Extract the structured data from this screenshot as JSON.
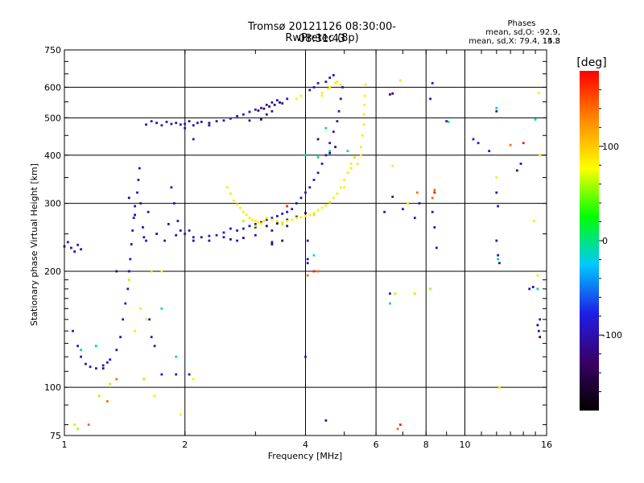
{
  "chart_data": {
    "type": "scatter",
    "title": "Tromsø 20121126 08:30:00-08:31:43",
    "subtitle": "RwPretec (8p)",
    "xlabel": "Frequency [MHz]",
    "ylabel": "Stationary phase Virtual Height [km]",
    "x_scale": "log",
    "y_scale": "log",
    "xlim": [
      1,
      16
    ],
    "ylim": [
      75,
      750
    ],
    "x_ticks": [
      1,
      2,
      4,
      6,
      8,
      10,
      16
    ],
    "y_ticks": [
      75,
      100,
      200,
      300,
      400,
      500,
      600,
      750
    ],
    "x_gridlines": [
      2,
      4,
      6,
      8,
      10
    ],
    "y_gridlines": [
      100,
      200,
      300,
      400,
      500,
      600
    ],
    "grid": true,
    "phase_stats": {
      "heading": "Phases",
      "line_O": "mean, sd,O: -92.9, 14.8",
      "line_X": "mean, sd,X:  79.4, 15.3"
    },
    "colorbar": {
      "label": "[deg]",
      "range": [
        -180,
        180
      ],
      "ticks": [
        100,
        0,
        -100
      ],
      "colors": [
        "#000000",
        "#3a0066",
        "#1e1ee6",
        "#00c8ff",
        "#00ff00",
        "#ffff00",
        "#ff8800",
        "#ff0000"
      ]
    },
    "series": [
      {
        "phase": -95,
        "points": [
          [
            1.0,
            232
          ],
          [
            1.02,
            238
          ],
          [
            1.04,
            230
          ],
          [
            1.06,
            225
          ],
          [
            1.08,
            234
          ],
          [
            1.1,
            228
          ],
          [
            1.05,
            140
          ],
          [
            1.08,
            128
          ],
          [
            1.1,
            120
          ],
          [
            1.13,
            115
          ],
          [
            1.16,
            113
          ],
          [
            1.2,
            112
          ],
          [
            1.25,
            114
          ],
          [
            1.28,
            116
          ],
          [
            1.3,
            118
          ],
          [
            1.35,
            125
          ],
          [
            1.38,
            135
          ],
          [
            1.4,
            150
          ],
          [
            1.42,
            165
          ],
          [
            1.44,
            180
          ],
          [
            1.45,
            200
          ],
          [
            1.46,
            215
          ],
          [
            1.47,
            235
          ],
          [
            1.48,
            255
          ],
          [
            1.49,
            275
          ],
          [
            1.5,
            295
          ],
          [
            1.52,
            320
          ],
          [
            1.53,
            345
          ],
          [
            1.54,
            370
          ],
          [
            1.55,
            300
          ],
          [
            1.57,
            260
          ],
          [
            1.58,
            245
          ],
          [
            1.6,
            240
          ],
          [
            1.62,
            285
          ],
          [
            1.63,
            150
          ],
          [
            1.65,
            135
          ],
          [
            1.68,
            128
          ],
          [
            1.58,
            105
          ],
          [
            1.78,
            240
          ],
          [
            1.82,
            265
          ],
          [
            1.85,
            330
          ],
          [
            1.88,
            300
          ],
          [
            1.92,
            270
          ],
          [
            1.95,
            255
          ],
          [
            2.0,
            250
          ],
          [
            2.05,
            255
          ],
          [
            2.1,
            245
          ],
          [
            2.2,
            245
          ],
          [
            2.3,
            247
          ],
          [
            2.4,
            248
          ],
          [
            2.5,
            252
          ],
          [
            2.6,
            258
          ],
          [
            2.7,
            255
          ],
          [
            2.8,
            258
          ],
          [
            2.9,
            262
          ],
          [
            3.0,
            265
          ],
          [
            3.1,
            268
          ],
          [
            3.2,
            272
          ],
          [
            3.3,
            275
          ],
          [
            3.4,
            278
          ],
          [
            3.5,
            282
          ],
          [
            3.6,
            285
          ],
          [
            3.7,
            290
          ],
          [
            3.8,
            300
          ],
          [
            3.9,
            310
          ],
          [
            4.0,
            320
          ],
          [
            4.1,
            330
          ],
          [
            4.2,
            345
          ],
          [
            4.3,
            360
          ],
          [
            4.4,
            380
          ],
          [
            4.5,
            400
          ],
          [
            4.6,
            430
          ],
          [
            4.7,
            460
          ],
          [
            4.8,
            490
          ],
          [
            4.85,
            520
          ],
          [
            4.9,
            560
          ],
          [
            4.95,
            600
          ],
          [
            4.5,
            620
          ],
          [
            4.6,
            635
          ],
          [
            4.7,
            645
          ],
          [
            4.1,
            590
          ],
          [
            4.2,
            600
          ],
          [
            4.3,
            615
          ],
          [
            1.6,
            480
          ],
          [
            1.65,
            490
          ],
          [
            1.7,
            485
          ],
          [
            1.75,
            478
          ],
          [
            1.8,
            488
          ],
          [
            1.85,
            482
          ],
          [
            1.9,
            485
          ],
          [
            1.95,
            480
          ],
          [
            2.0,
            482
          ],
          [
            2.05,
            490
          ],
          [
            2.1,
            478
          ],
          [
            2.15,
            485
          ],
          [
            2.2,
            488
          ],
          [
            2.3,
            485
          ],
          [
            2.4,
            490
          ],
          [
            2.5,
            492
          ],
          [
            2.6,
            498
          ],
          [
            2.7,
            505
          ],
          [
            2.8,
            510
          ],
          [
            2.9,
            518
          ],
          [
            3.0,
            525
          ],
          [
            3.1,
            530
          ],
          [
            3.2,
            540
          ],
          [
            3.3,
            548
          ],
          [
            3.4,
            555
          ],
          [
            3.5,
            545
          ],
          [
            3.6,
            560
          ],
          [
            2.1,
            440
          ],
          [
            2.0,
            470
          ],
          [
            4.0,
            120
          ],
          [
            1.75,
            108
          ],
          [
            1.9,
            108
          ],
          [
            2.05,
            108
          ],
          [
            2.5,
            245
          ],
          [
            2.7,
            240
          ],
          [
            3.3,
            238
          ],
          [
            4.05,
            240
          ],
          [
            4.05,
            215
          ],
          [
            4.05,
            210
          ],
          [
            4.5,
            82
          ],
          [
            6.5,
            175
          ],
          [
            6.6,
            312
          ],
          [
            7.0,
            290
          ],
          [
            7.5,
            275
          ],
          [
            7.7,
            300
          ],
          [
            8.3,
            285
          ],
          [
            8.4,
            260
          ],
          [
            8.5,
            230
          ],
          [
            8.2,
            560
          ],
          [
            8.3,
            615
          ],
          [
            9.0,
            490
          ],
          [
            10.5,
            440
          ],
          [
            10.8,
            430
          ],
          [
            11.5,
            410
          ],
          [
            12.0,
            320
          ],
          [
            12.1,
            295
          ],
          [
            12.0,
            240
          ],
          [
            12.1,
            220
          ],
          [
            12.2,
            210
          ],
          [
            13.8,
            380
          ],
          [
            14.5,
            180
          ],
          [
            15.3,
            140
          ],
          [
            15.4,
            150
          ],
          [
            12.0,
            520
          ],
          [
            6.3,
            285
          ],
          [
            5.3,
            395
          ]
        ]
      },
      {
        "phase": -115,
        "points": [
          [
            1.25,
            112
          ],
          [
            1.35,
            200
          ],
          [
            1.45,
            310
          ],
          [
            1.5,
            280
          ],
          [
            1.7,
            250
          ],
          [
            1.9,
            248
          ],
          [
            2.1,
            240
          ],
          [
            2.3,
            240
          ],
          [
            2.6,
            242
          ],
          [
            2.8,
            244
          ],
          [
            3.0,
            248
          ],
          [
            3.3,
            255
          ],
          [
            3.6,
            262
          ],
          [
            2.9,
            492
          ],
          [
            3.1,
            495
          ],
          [
            3.2,
            510
          ],
          [
            3.3,
            520
          ],
          [
            2.3,
            478
          ],
          [
            4.3,
            440
          ],
          [
            4.6,
            405
          ],
          [
            4.75,
            420
          ],
          [
            6.5,
            575
          ],
          [
            13.5,
            365
          ],
          [
            14.8,
            182
          ]
        ]
      },
      {
        "phase": -135,
        "points": [
          [
            3.0,
            260
          ],
          [
            3.2,
            262
          ],
          [
            3.4,
            266
          ],
          [
            3.6,
            272
          ],
          [
            3.8,
            277
          ],
          [
            4.0,
            283
          ],
          [
            3.05,
            522
          ],
          [
            3.15,
            528
          ],
          [
            3.25,
            535
          ],
          [
            3.35,
            540
          ],
          [
            3.45,
            548
          ],
          [
            3.3,
            235
          ],
          [
            3.5,
            240
          ],
          [
            6.6,
            578
          ],
          [
            15.4,
            135
          ],
          [
            15.2,
            145
          ]
        ]
      },
      {
        "phase": 85,
        "points": [
          [
            2.55,
            330
          ],
          [
            2.6,
            318
          ],
          [
            2.65,
            305
          ],
          [
            2.7,
            298
          ],
          [
            2.75,
            292
          ],
          [
            2.8,
            285
          ],
          [
            2.85,
            280
          ],
          [
            2.9,
            275
          ],
          [
            2.95,
            272
          ],
          [
            3.0,
            270
          ],
          [
            3.05,
            268
          ],
          [
            3.1,
            266
          ],
          [
            3.15,
            270
          ],
          [
            3.2,
            275
          ],
          [
            3.3,
            272
          ],
          [
            3.4,
            270
          ],
          [
            3.5,
            268
          ],
          [
            3.6,
            270
          ],
          [
            3.7,
            272
          ],
          [
            3.8,
            275
          ],
          [
            3.9,
            276
          ],
          [
            4.0,
            278
          ],
          [
            4.1,
            280
          ],
          [
            4.2,
            283
          ],
          [
            4.3,
            288
          ],
          [
            4.4,
            292
          ],
          [
            4.5,
            296
          ],
          [
            4.6,
            302
          ],
          [
            4.7,
            310
          ],
          [
            4.8,
            318
          ],
          [
            4.9,
            330
          ],
          [
            5.0,
            345
          ],
          [
            5.1,
            360
          ],
          [
            5.2,
            380
          ],
          [
            5.3,
            395
          ],
          [
            5.4,
            380
          ],
          [
            5.5,
            400
          ],
          [
            5.5,
            420
          ],
          [
            5.55,
            450
          ],
          [
            5.6,
            480
          ],
          [
            5.6,
            510
          ],
          [
            5.62,
            540
          ],
          [
            5.62,
            570
          ],
          [
            5.65,
            610
          ],
          [
            5.2,
            370
          ],
          [
            5.0,
            330
          ],
          [
            4.4,
            580
          ],
          [
            4.55,
            595
          ],
          [
            4.6,
            600
          ],
          [
            4.75,
            615
          ],
          [
            4.8,
            620
          ],
          [
            4.4,
            570
          ],
          [
            3.8,
            560
          ],
          [
            3.9,
            570
          ],
          [
            6.9,
            625
          ],
          [
            6.6,
            375
          ],
          [
            4.9,
            610
          ],
          [
            1.95,
            85
          ],
          [
            1.68,
            95
          ],
          [
            1.58,
            105
          ],
          [
            1.55,
            160
          ],
          [
            1.6,
            150
          ],
          [
            1.5,
            140
          ],
          [
            15.3,
            580
          ],
          [
            15.4,
            400
          ],
          [
            15.2,
            195
          ],
          [
            14.9,
            270
          ],
          [
            7.2,
            300
          ],
          [
            2.1,
            105
          ],
          [
            1.75,
            200
          ],
          [
            12.0,
            350
          ],
          [
            12.2,
            100
          ]
        ]
      },
      {
        "phase": 60,
        "points": [
          [
            2.8,
            270
          ],
          [
            3.0,
            262
          ],
          [
            3.5,
            265
          ],
          [
            4.2,
            280
          ],
          [
            1.65,
            200
          ],
          [
            1.45,
            190
          ],
          [
            1.08,
            78
          ],
          [
            1.06,
            80
          ],
          [
            1.22,
            95
          ],
          [
            1.3,
            102
          ],
          [
            6.7,
            175
          ],
          [
            7.5,
            175
          ],
          [
            8.2,
            180
          ],
          [
            8.4,
            320
          ]
        ]
      },
      {
        "phase": 140,
        "points": [
          [
            1.15,
            80
          ],
          [
            1.28,
            92
          ],
          [
            1.35,
            105
          ],
          [
            4.3,
            200
          ],
          [
            4.05,
            195
          ],
          [
            7.6,
            320
          ],
          [
            8.3,
            310
          ],
          [
            6.8,
            78
          ],
          [
            13.0,
            425
          ],
          [
            8.4,
            325
          ]
        ]
      },
      {
        "phase": -5,
        "points": [
          [
            4.0,
            400
          ],
          [
            4.3,
            395
          ],
          [
            5.1,
            410
          ],
          [
            1.75,
            160
          ],
          [
            1.9,
            120
          ],
          [
            4.6,
            410
          ],
          [
            4.2,
            220
          ],
          [
            4.5,
            470
          ],
          [
            6.5,
            165
          ],
          [
            9.1,
            488
          ],
          [
            12.0,
            530
          ],
          [
            12.1,
            215
          ],
          [
            15.2,
            180
          ],
          [
            15.0,
            495
          ],
          [
            1.1,
            125
          ],
          [
            1.2,
            128
          ]
        ]
      },
      {
        "phase": 170,
        "points": [
          [
            4.2,
            200
          ],
          [
            3.6,
            295
          ],
          [
            8.4,
            320
          ],
          [
            6.9,
            80
          ],
          [
            14.0,
            430
          ]
        ]
      }
    ]
  }
}
